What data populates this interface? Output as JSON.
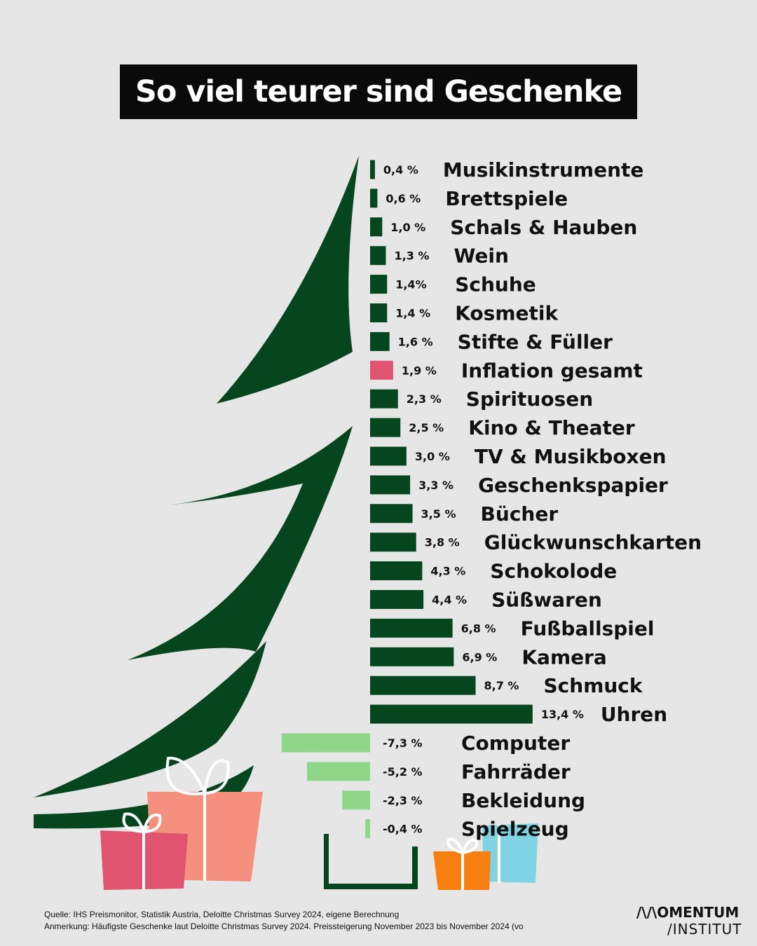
{
  "chart_data": {
    "type": "bar",
    "orientation": "horizontal",
    "title": "So viel teurer sind Geschenke",
    "unit": "%",
    "categories": [
      "Musikinstrumente",
      "Brettspiele",
      "Schals & Hauben",
      "Wein",
      "Schuhe",
      "Kosmetik",
      "Stifte & Füller",
      "Inflation gesamt",
      "Spirituosen",
      "Kino & Theater",
      "TV & Musikboxen",
      "Geschenkspapier",
      "Bücher",
      "Glückwunschkarten",
      "Schokolode",
      "Süßwaren",
      "Fußballspiel",
      "Kamera",
      "Schmuck",
      "Uhren",
      "Computer",
      "Fahrräder",
      "Bekleidung",
      "Spielzeug"
    ],
    "values": [
      0.4,
      0.6,
      1.0,
      1.3,
      1.4,
      1.4,
      1.6,
      1.9,
      2.3,
      2.5,
      3.0,
      3.3,
      3.5,
      3.8,
      4.3,
      4.4,
      6.8,
      6.9,
      8.7,
      13.4,
      -7.3,
      -5.2,
      -2.3,
      -0.4
    ],
    "value_labels": [
      "0,4 %",
      "0,6 %",
      "1,0 %",
      "1,3 %",
      "1,4%",
      "1,4 %",
      "1,6 %",
      "1,9 %",
      "2,3 %",
      "2,5 %",
      "3,0 %",
      "3,3 %",
      "3,5 %",
      "3,8 %",
      "4,3 %",
      "4,4 %",
      "6,8 %",
      "6,9 %",
      "8,7 %",
      "13,4 %",
      "-7,3 %",
      "-5,2 %",
      "-2,3 %",
      "-0,4 %"
    ],
    "colors": {
      "positive": "#05461e",
      "highlight": "#e0546f",
      "negative": "#8fd68a"
    },
    "highlight_category": "Inflation gesamt",
    "xlim": [
      -7.3,
      13.4
    ]
  },
  "footer": {
    "source": "Quelle: IHS Preismonitor, Statistik Austria,  Deloitte Christmas Survey 2024, eigene Berechnung",
    "note": "Anmerkung: Häufigste Geschenke laut Deloitte Christmas Survey 2024. Preissteigerung November 2023 bis November 2024 (vo"
  },
  "logo": {
    "line1": "/\\/\\OMENTUM",
    "line2": "/INSTITUT"
  },
  "decor": {
    "tree_color": "#05461e",
    "gift_colors": [
      "#e0546f",
      "#f58f7e",
      "#f77f10",
      "#7fd3e3"
    ]
  }
}
